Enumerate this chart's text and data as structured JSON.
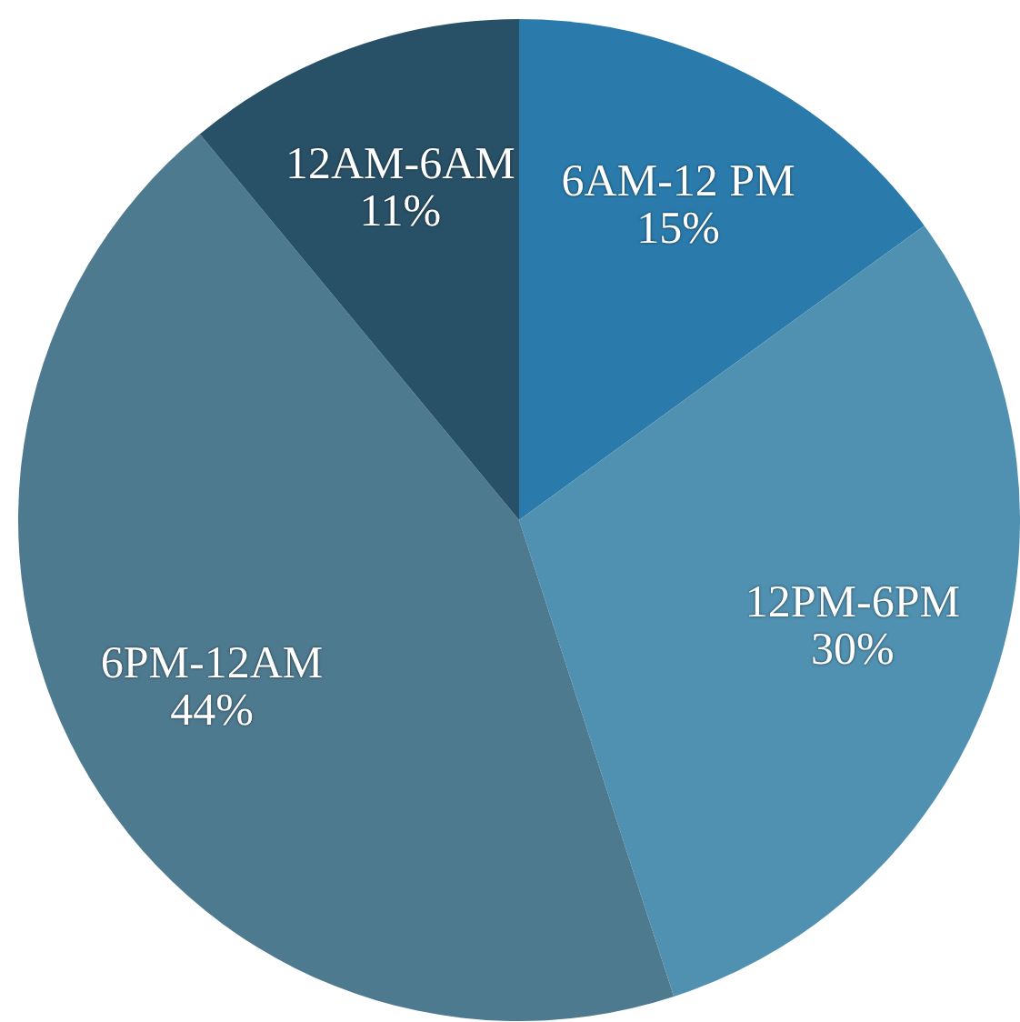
{
  "chart_data": {
    "type": "pie",
    "categories": [
      "6AM-12 PM",
      "12PM-6PM",
      "6PM-12AM",
      "12AM-6AM"
    ],
    "values": [
      15,
      30,
      44,
      11
    ],
    "value_labels": [
      "15%",
      "30%",
      "44%",
      "11%"
    ],
    "colors": [
      "#2a7aab",
      "#5090b0",
      "#4e7a90",
      "#285168"
    ],
    "legend": false
  }
}
